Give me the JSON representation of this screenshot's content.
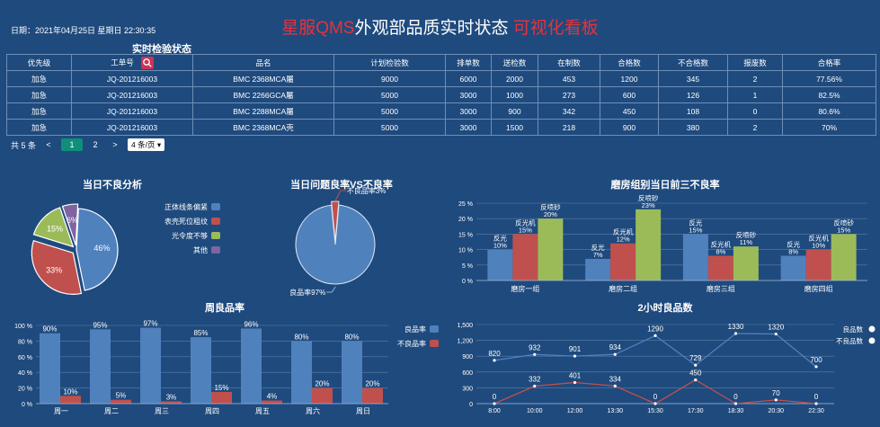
{
  "header": {
    "date": "日期：2021年04月25日 星期日 22:30:35",
    "title_left": "星服QMS",
    "title_mid": "外观部品质实时状态",
    "title_right": "可视化看板"
  },
  "inspection": {
    "title": "实时检验状态",
    "columns": [
      "优先级",
      "工单号",
      "品名",
      "计划检验数",
      "排单数",
      "送检数",
      "在制数",
      "合格数",
      "不合格数",
      "报废数",
      "合格率"
    ],
    "rows": [
      [
        "加急",
        "JQ-201216003",
        "BMC 2368MCA屬",
        "9000",
        "6000",
        "2000",
        "453",
        "1200",
        "345",
        "2",
        "77.56%"
      ],
      [
        "加急",
        "JQ-201216003",
        "BMC 2266GCA屬",
        "5000",
        "3000",
        "1000",
        "273",
        "600",
        "126",
        "1",
        "82.5%"
      ],
      [
        "加急",
        "JQ-201216003",
        "BMC 2288MCA屬",
        "5000",
        "3000",
        "900",
        "342",
        "450",
        "108",
        "0",
        "80.6%"
      ],
      [
        "加急",
        "JQ-201216003",
        "BMC 2368MCA壳",
        "5000",
        "3000",
        "1500",
        "218",
        "900",
        "380",
        "2",
        "70%"
      ]
    ],
    "pager": {
      "total": "共 5 条",
      "prev": "<",
      "page1": "1",
      "page2": "2",
      "next": ">",
      "per_page": "4 条/页"
    }
  },
  "colors": {
    "blue": "#4f81bd",
    "red": "#c0504d",
    "green": "#9bbb59",
    "purple": "#8064a2",
    "bg": "#1f4a7d",
    "title_red": "#e8323a"
  },
  "chart_data": [
    {
      "type": "pie",
      "title": "当日不良分析",
      "labels": [
        "正体线条偏紧",
        "表壳死位粗纹",
        "光令度不够",
        "其他"
      ],
      "values": [
        46,
        33,
        15,
        6
      ],
      "value_labels": [
        "46%",
        "33%",
        "15%",
        "6%"
      ],
      "colors": [
        "#4f81bd",
        "#c0504d",
        "#9bbb59",
        "#8064a2"
      ]
    },
    {
      "type": "pie",
      "title": "当日问题良率VS不良率",
      "labels": [
        "良品率97%",
        "不良品率3%"
      ],
      "values": [
        97,
        3
      ],
      "colors": [
        "#4f81bd",
        "#c0504d"
      ]
    },
    {
      "type": "bar",
      "title": "磨房组别当日前三不良率",
      "categories": [
        "磨房一组",
        "磨房二组",
        "磨房三组",
        "磨房四组"
      ],
      "series": [
        {
          "name": "",
          "labels": [
            "反光",
            "反光",
            "反光",
            "反光"
          ],
          "values": [
            10,
            7,
            15,
            8
          ],
          "color": "#4f81bd"
        },
        {
          "name": "",
          "labels": [
            "反光机",
            "反光机",
            "反光机",
            "反光机"
          ],
          "values": [
            15,
            12,
            8,
            10
          ],
          "color": "#c0504d"
        },
        {
          "name": "",
          "labels": [
            "反喷砂",
            "反喷砂",
            "反喷砂",
            "反喷砂"
          ],
          "values": [
            20,
            23,
            11,
            15
          ],
          "color": "#9bbb59"
        }
      ],
      "value_labels": [
        [
          "10%",
          "7%",
          "15%",
          "8%"
        ],
        [
          "15%",
          "12%",
          "8%",
          "10%"
        ],
        [
          "20%",
          "23%",
          "11%",
          "15%"
        ]
      ],
      "yticks": [
        "25 %",
        "20 %",
        "15 %",
        "10 %",
        "5 %",
        "0 %"
      ],
      "ylim": [
        0,
        25
      ]
    },
    {
      "type": "bar",
      "title": "周良品率",
      "categories": [
        "周一",
        "周二",
        "周三",
        "周四",
        "周五",
        "周六",
        "周日"
      ],
      "series": [
        {
          "name": "良品率",
          "values": [
            90,
            95,
            97,
            85,
            96,
            80,
            80
          ],
          "labels": [
            "90%",
            "95%",
            "97%",
            "85%",
            "96%",
            "80%",
            "80%"
          ],
          "color": "#4f81bd"
        },
        {
          "name": "不良品率",
          "values": [
            10,
            5,
            3,
            15,
            4,
            20,
            20
          ],
          "labels": [
            "10%",
            "5%",
            "3%",
            "15%",
            "4%",
            "20%",
            "20%"
          ],
          "color": "#c0504d"
        }
      ],
      "yticks": [
        "100 %",
        "80 %",
        "60 %",
        "40 %",
        "20 %",
        "0 %"
      ],
      "ylim": [
        0,
        100
      ]
    },
    {
      "type": "line",
      "title": "2小时良品数",
      "categories": [
        "8:00",
        "10:00",
        "12:00",
        "13:30",
        "15:30",
        "17:30",
        "18:30",
        "20:30",
        "22:30"
      ],
      "series": [
        {
          "name": "良品数",
          "values": [
            820,
            932,
            901,
            934,
            1290,
            729,
            1330,
            1320,
            700
          ],
          "color": "#4f81bd"
        },
        {
          "name": "不良品数",
          "values": [
            0,
            332,
            401,
            334,
            0,
            450,
            0,
            70,
            0
          ],
          "color": "#c0504d"
        }
      ],
      "yticks": [
        "1,500",
        "1,200",
        "900",
        "600",
        "300",
        "0"
      ],
      "ylim": [
        0,
        1500
      ]
    }
  ]
}
